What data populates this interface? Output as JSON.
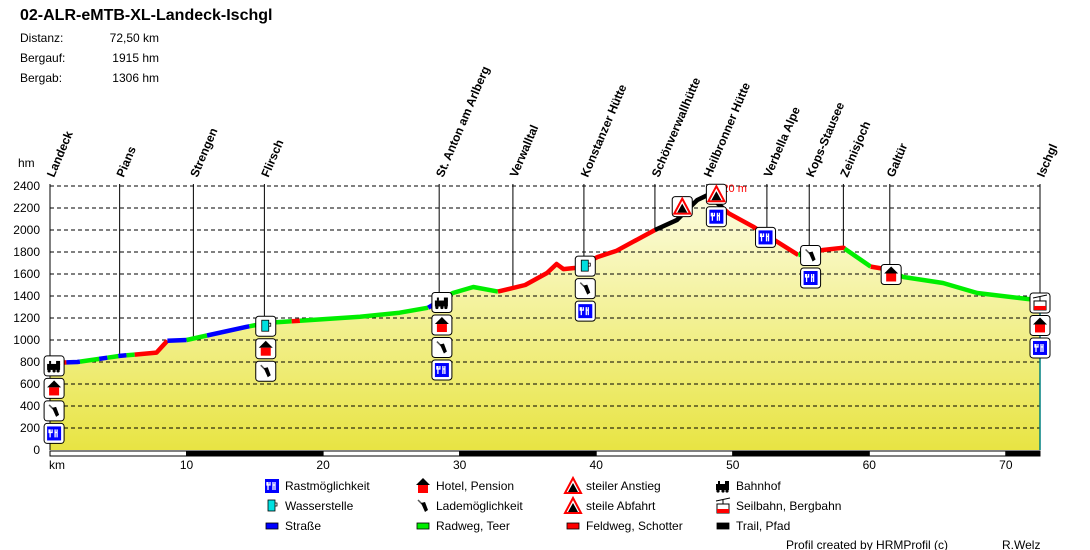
{
  "header": {
    "title": "02-ALR-eMTB-XL-Landeck-Ischgl",
    "stats": [
      {
        "label": "Distanz:",
        "value": "72,50 km"
      },
      {
        "label": "Bergauf:",
        "value": "1915 hm"
      },
      {
        "label": "Bergab:",
        "value": "1306 hm"
      }
    ]
  },
  "chart_data": {
    "type": "area",
    "ylabel": "hm",
    "xlabel": "km",
    "xlim": [
      0,
      72.5
    ],
    "ylim": [
      0,
      2400
    ],
    "yticks": [
      "0",
      "200",
      "400",
      "600",
      "800",
      "1000",
      "1200",
      "1400",
      "1600",
      "1800",
      "2000",
      "2200",
      "2400"
    ],
    "xticks": [
      "km",
      "10",
      "20",
      "30",
      "40",
      "50",
      "60",
      "70"
    ],
    "xtick_values": [
      0,
      10,
      20,
      30,
      40,
      50,
      60,
      70
    ],
    "grid": true,
    "max_label": "2320 m",
    "profile": [
      [
        0,
        790
      ],
      [
        2,
        800
      ],
      [
        5.1,
        855
      ],
      [
        7.8,
        885
      ],
      [
        8.6,
        994
      ],
      [
        10,
        1000
      ],
      [
        14.4,
        1120
      ],
      [
        15.9,
        1155
      ],
      [
        22.7,
        1212
      ],
      [
        25.6,
        1248
      ],
      [
        27.7,
        1294
      ],
      [
        29.5,
        1427
      ],
      [
        31.0,
        1482
      ],
      [
        32.8,
        1440
      ],
      [
        34.8,
        1500
      ],
      [
        36.4,
        1609
      ],
      [
        37.1,
        1691
      ],
      [
        37.6,
        1645
      ],
      [
        38.5,
        1655
      ],
      [
        40.1,
        1755
      ],
      [
        41.5,
        1812
      ],
      [
        44.3,
        2000
      ],
      [
        45.9,
        2090
      ],
      [
        46.4,
        2152
      ],
      [
        47.4,
        2273
      ],
      [
        48.2,
        2320
      ],
      [
        49.7,
        2152
      ],
      [
        51.5,
        2030
      ],
      [
        54.8,
        1773
      ],
      [
        56.6,
        1818
      ],
      [
        58.1,
        1839
      ],
      [
        60.1,
        1667
      ],
      [
        61.2,
        1645
      ],
      [
        62.5,
        1573
      ],
      [
        65.4,
        1518
      ],
      [
        67.9,
        1427
      ],
      [
        71.6,
        1373
      ],
      [
        72.5,
        1364
      ]
    ],
    "surface_segments": [
      [
        0,
        0.8,
        "strasse"
      ],
      [
        0.8,
        1.2,
        "feldweg"
      ],
      [
        1.2,
        2.2,
        "strasse"
      ],
      [
        2.2,
        3.6,
        "radweg"
      ],
      [
        3.6,
        4.2,
        "strasse"
      ],
      [
        4.2,
        5,
        "radweg"
      ],
      [
        5,
        5.6,
        "strasse"
      ],
      [
        5.6,
        6.2,
        "radweg"
      ],
      [
        6.2,
        8.6,
        "feldweg"
      ],
      [
        8.6,
        10,
        "strasse"
      ],
      [
        10,
        11.5,
        "radweg"
      ],
      [
        11.5,
        14.6,
        "strasse"
      ],
      [
        14.6,
        17.7,
        "radweg"
      ],
      [
        17.7,
        18.3,
        "feldweg"
      ],
      [
        18.3,
        27.7,
        "radweg"
      ],
      [
        27.7,
        29.2,
        "strasse"
      ],
      [
        29.2,
        32.8,
        "radweg"
      ],
      [
        32.8,
        44.3,
        "feldweg"
      ],
      [
        44.3,
        49.3,
        "trail"
      ],
      [
        49.3,
        54.8,
        "feldweg"
      ],
      [
        54.8,
        55.2,
        "radweg"
      ],
      [
        55.2,
        58.2,
        "feldweg"
      ],
      [
        58.2,
        60.1,
        "radweg"
      ],
      [
        60.1,
        61.3,
        "feldweg"
      ],
      [
        61.3,
        72.5,
        "radweg"
      ]
    ],
    "waypoints": [
      {
        "name": "Landeck",
        "km": 0
      },
      {
        "name": "Pians",
        "km": 5.1
      },
      {
        "name": "Strengen",
        "km": 10.5
      },
      {
        "name": "Flirsch",
        "km": 15.7
      },
      {
        "name": "St. Anton am Arlberg",
        "km": 28.5
      },
      {
        "name": "Verwalltal",
        "km": 33.9
      },
      {
        "name": "Konstanzer Hütte",
        "km": 39.1
      },
      {
        "name": "Schönverwallhütte",
        "km": 44.3
      },
      {
        "name": "Heilbronner Hütte",
        "km": 48.1
      },
      {
        "name": "Verbella Alpe",
        "km": 52.5
      },
      {
        "name": "Kops-Stausee",
        "km": 55.6
      },
      {
        "name": "Zeinisjoch",
        "km": 58.1
      },
      {
        "name": "Galtür",
        "km": 61.5
      },
      {
        "name": "Ischgl",
        "km": 72.5
      }
    ],
    "poi_stacks": [
      {
        "km": 0.3,
        "icons": [
          "bahnhof",
          "hotel",
          "lade",
          "rast"
        ]
      },
      {
        "km": 15.8,
        "icons": [
          "wasser",
          "hotel",
          "lade"
        ]
      },
      {
        "km": 28.7,
        "icons": [
          "bahnhof",
          "hotel",
          "lade",
          "rast"
        ]
      },
      {
        "km": 39.2,
        "icons": [
          "wasser",
          "lade",
          "rast"
        ]
      },
      {
        "km": 46.3,
        "icons": [
          "anstieg"
        ]
      },
      {
        "km": 48.8,
        "icons": [
          "abfahrt",
          "rast"
        ]
      },
      {
        "km": 52.4,
        "icons": [
          "rast"
        ]
      },
      {
        "km": 55.7,
        "icons": [
          "lade",
          "rast"
        ]
      },
      {
        "km": 61.6,
        "icons": [
          "hotel"
        ]
      },
      {
        "km": 72.5,
        "icons": [
          "seilbahn",
          "hotel",
          "rast"
        ]
      }
    ]
  },
  "colors": {
    "strasse": "#0000ff",
    "radweg": "#00ee00",
    "feldweg": "#ff0000",
    "trail": "#000000",
    "max_label": "#ff0000",
    "fill_top": "#fdfde6",
    "fill_bottom": "#e8e443",
    "end_line": "#008080"
  },
  "legend": [
    {
      "icon": "rast",
      "label": "Rastmöglichkeit"
    },
    {
      "icon": "wasser",
      "label": "Wasserstelle"
    },
    {
      "icon": "strasse",
      "label": "Straße"
    },
    {
      "icon": "hotel",
      "label": "Hotel, Pension"
    },
    {
      "icon": "lade",
      "label": "Lademöglichkeit"
    },
    {
      "icon": "radweg",
      "label": "Radweg, Teer"
    },
    {
      "icon": "anstieg",
      "label": "steiler Anstieg"
    },
    {
      "icon": "abfahrt",
      "label": "steile Abfahrt"
    },
    {
      "icon": "feldweg",
      "label": "Feldweg, Schotter"
    },
    {
      "icon": "bahnhof",
      "label": "Bahnhof"
    },
    {
      "icon": "seilbahn",
      "label": "Seilbahn, Bergbahn"
    },
    {
      "icon": "trail",
      "label": "Trail, Pfad"
    }
  ],
  "footer": {
    "credit": "Profil created by HRMProfil (c)",
    "author": "R.Welz"
  }
}
